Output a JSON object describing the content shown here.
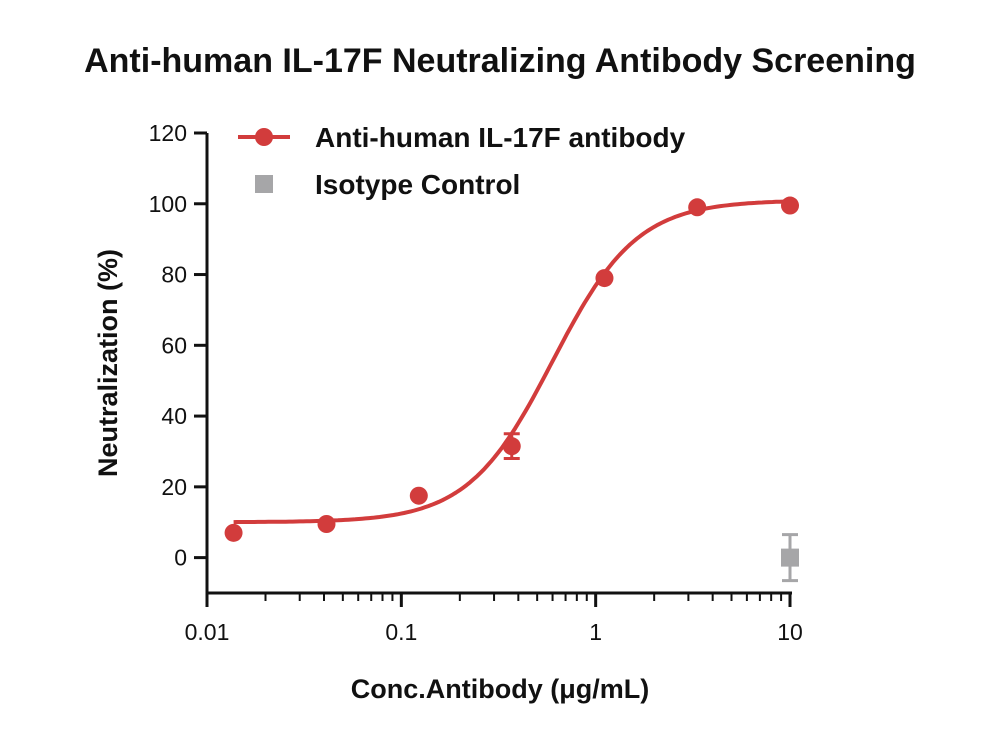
{
  "chart_data": {
    "type": "scatter",
    "title": "Anti-human IL-17F Neutralizing Antibody Screening",
    "xlabel": "Conc.Antibody (μg/mL)",
    "ylabel": "Neutralization (%)",
    "x_scale": "log",
    "xlim": [
      0.01,
      10
    ],
    "ylim": [
      -10,
      120
    ],
    "x_ticks": [
      0.01,
      0.1,
      1,
      10
    ],
    "x_tick_labels": [
      "0.01",
      "0.1",
      "1",
      "10"
    ],
    "y_ticks": [
      0,
      20,
      40,
      60,
      80,
      100,
      120
    ],
    "y_tick_labels": [
      "0",
      "20",
      "40",
      "60",
      "80",
      "100",
      "120"
    ],
    "grid": false,
    "legend_position": "top-left",
    "series": [
      {
        "name": "Anti-human IL-17F antibody",
        "color": "#d23c3c",
        "marker": "circle",
        "x": [
          0.0137,
          0.0412,
          0.123,
          0.37,
          1.11,
          3.33,
          10
        ],
        "y": [
          7,
          9.5,
          17.5,
          31.5,
          79,
          99,
          99.5
        ],
        "error": [
          0,
          0,
          0,
          3.5,
          0,
          0,
          0
        ],
        "fit": {
          "model": "4PL",
          "bottom": 10,
          "top": 101,
          "ec50": 0.6,
          "hill": 2.0
        }
      },
      {
        "name": "Isotype Control",
        "color": "#a6a6a8",
        "marker": "square",
        "x": [
          10
        ],
        "y": [
          0
        ],
        "error": [
          6.5
        ]
      }
    ]
  }
}
